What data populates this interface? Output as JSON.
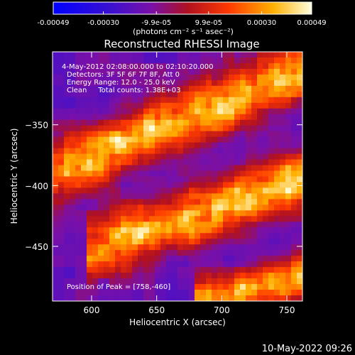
{
  "chart_data": {
    "type": "heatmap",
    "title": "Reconstructed RHESSI Image",
    "xlabel": "Heliocentric X (arcsec)",
    "ylabel": "Heliocentric Y (arcsec)",
    "xlim": [
      570,
      762
    ],
    "ylim": [
      -495,
      -290
    ],
    "xticks": [
      600,
      650,
      700,
      750
    ],
    "yticks": [
      -350,
      -400,
      -450
    ],
    "grid": false,
    "colorbar": {
      "ticks": [
        -0.00049,
        -0.0003,
        -9.9e-05,
        9.9e-05,
        0.0003,
        0.00049
      ],
      "tick_labels": [
        "-0.00049",
        "-0.00030",
        "-9.9e-05",
        "9.9e-05",
        "0.00030",
        "0.00049"
      ],
      "unit_label": "(photons cm⁻² s⁻¹ asec⁻²)",
      "range": [
        -0.00049,
        0.00049
      ]
    },
    "annotations": [
      "4-May-2012 02:08:00.000 to 02:10:20.000",
      "Detectors: 3F 5F 6F 7F 8F, Att 0",
      "Energy Range: 12.0 - 25.0 keV",
      "Clean     Total counts: 1.38E+03"
    ],
    "peak_label": "Position of Peak = [758,-460]",
    "peak_position": [
      758,
      -460
    ],
    "emission_bands": [
      {
        "x": [
          570,
          762
        ],
        "y_start": -390,
        "y_end": -305,
        "width": 32,
        "strength": 0.95
      },
      {
        "x": [
          595,
          762
        ],
        "y_start": -455,
        "y_end": -395,
        "width": 30,
        "strength": 1.0
      },
      {
        "x": [
          680,
          762
        ],
        "y_start": -495,
        "y_end": -475,
        "width": 22,
        "strength": 0.9
      }
    ]
  },
  "footer": {
    "date": "10-May-2022 09:26"
  }
}
